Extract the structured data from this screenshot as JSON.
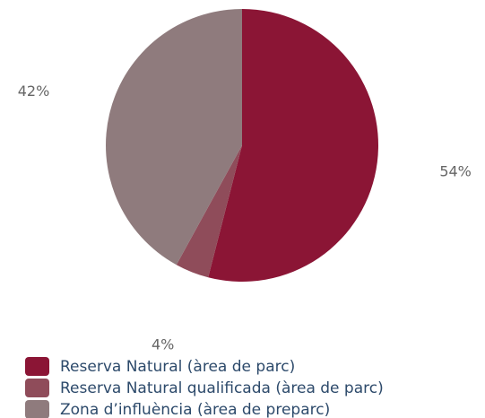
{
  "chart_data": {
    "type": "pie",
    "categories": [
      "Reserva Natural (àrea de parc)",
      "Reserva Natural qualificada (àrea de parc)",
      "Zona d’influència (àrea de preparc)"
    ],
    "values": [
      54,
      4,
      42
    ],
    "value_labels": [
      "54%",
      "4%",
      "42%"
    ],
    "colors": [
      "#8b1535",
      "#8f4c5a",
      "#8f7b7d"
    ]
  }
}
